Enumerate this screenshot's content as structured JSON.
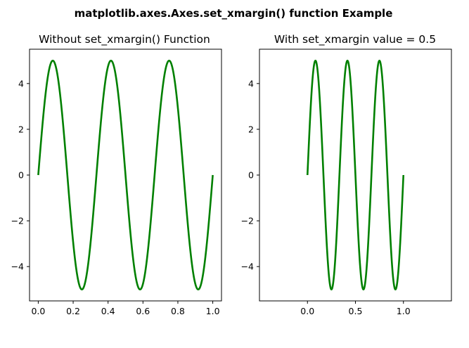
{
  "suptitle": "matplotlib.axes.Axes.set_xmargin() function Example",
  "line_color": "#008000",
  "chart_data": [
    {
      "type": "line",
      "title": "Without set_xmargin() Function",
      "xlabel": "",
      "ylabel": "",
      "xlim": [
        -0.05,
        1.05
      ],
      "ylim": [
        -5.5,
        5.5
      ],
      "xticks": [
        0.0,
        0.2,
        0.4,
        0.6,
        0.8,
        1.0
      ],
      "xtick_labels": [
        "0.0",
        "0.2",
        "0.4",
        "0.6",
        "0.8",
        "1.0"
      ],
      "yticks": [
        -4,
        -2,
        0,
        2,
        4
      ],
      "ytick_labels": [
        "−4",
        "−2",
        "0",
        "2",
        "4"
      ],
      "grid": false,
      "series": [
        {
          "function": "5*sin(3*2*pi*x)",
          "x_range": [
            0,
            1
          ],
          "amplitude": 5,
          "cycles": 3,
          "color": "#008000"
        }
      ]
    },
    {
      "type": "line",
      "title": "With set_xmargin value = 0.5",
      "xlabel": "",
      "ylabel": "",
      "xlim": [
        -0.5,
        1.5
      ],
      "ylim": [
        -5.5,
        5.5
      ],
      "xmargin": 0.5,
      "xticks": [
        0.0,
        0.5,
        1.0
      ],
      "xtick_labels": [
        "0.0",
        "0.5",
        "1.0"
      ],
      "yticks": [
        -4,
        -2,
        0,
        2,
        4
      ],
      "ytick_labels": [
        "−4",
        "−2",
        "0",
        "2",
        "4"
      ],
      "grid": false,
      "series": [
        {
          "function": "5*sin(3*2*pi*x)",
          "x_range": [
            0,
            1
          ],
          "amplitude": 5,
          "cycles": 3,
          "color": "#008000"
        }
      ]
    }
  ]
}
